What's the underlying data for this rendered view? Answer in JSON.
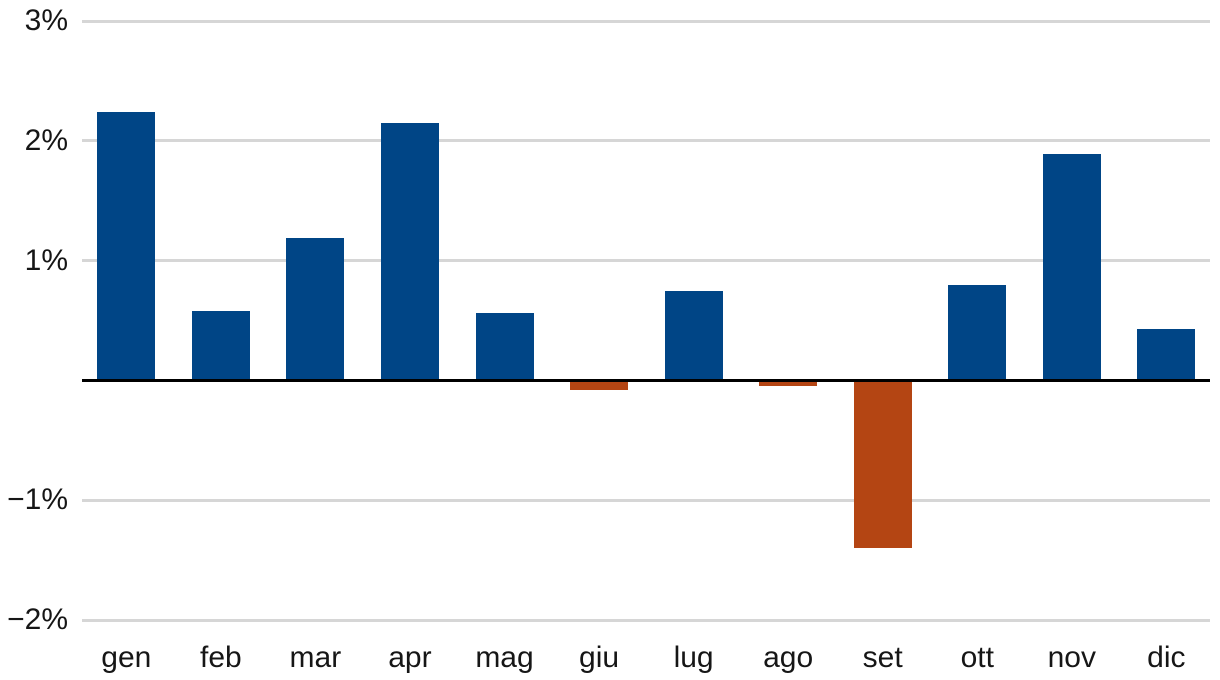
{
  "chart_data": {
    "type": "bar",
    "title": "",
    "xlabel": "",
    "ylabel": "",
    "unit": "%",
    "categories": [
      "gen",
      "feb",
      "mar",
      "apr",
      "mag",
      "giu",
      "lug",
      "ago",
      "set",
      "ott",
      "nov",
      "dic"
    ],
    "values": [
      2.24,
      0.58,
      1.19,
      2.15,
      0.56,
      -0.08,
      0.75,
      -0.05,
      -1.4,
      0.8,
      1.89,
      0.43
    ],
    "y_ticks": [
      {
        "label": "3%",
        "value": 3
      },
      {
        "label": "2%",
        "value": 2
      },
      {
        "label": "1%",
        "value": 1
      },
      {
        "label": "−1%",
        "value": -1
      },
      {
        "label": "−2%",
        "value": -2
      }
    ],
    "ylim": [
      -2.5,
      3.17
    ],
    "grid": true,
    "legend": "none",
    "zero_axis": true,
    "colors": {
      "positive": "#004586",
      "negative": "#B44513",
      "gridline": "#D6D6D6",
      "axis_line": "#000000",
      "text": "#161616"
    }
  }
}
